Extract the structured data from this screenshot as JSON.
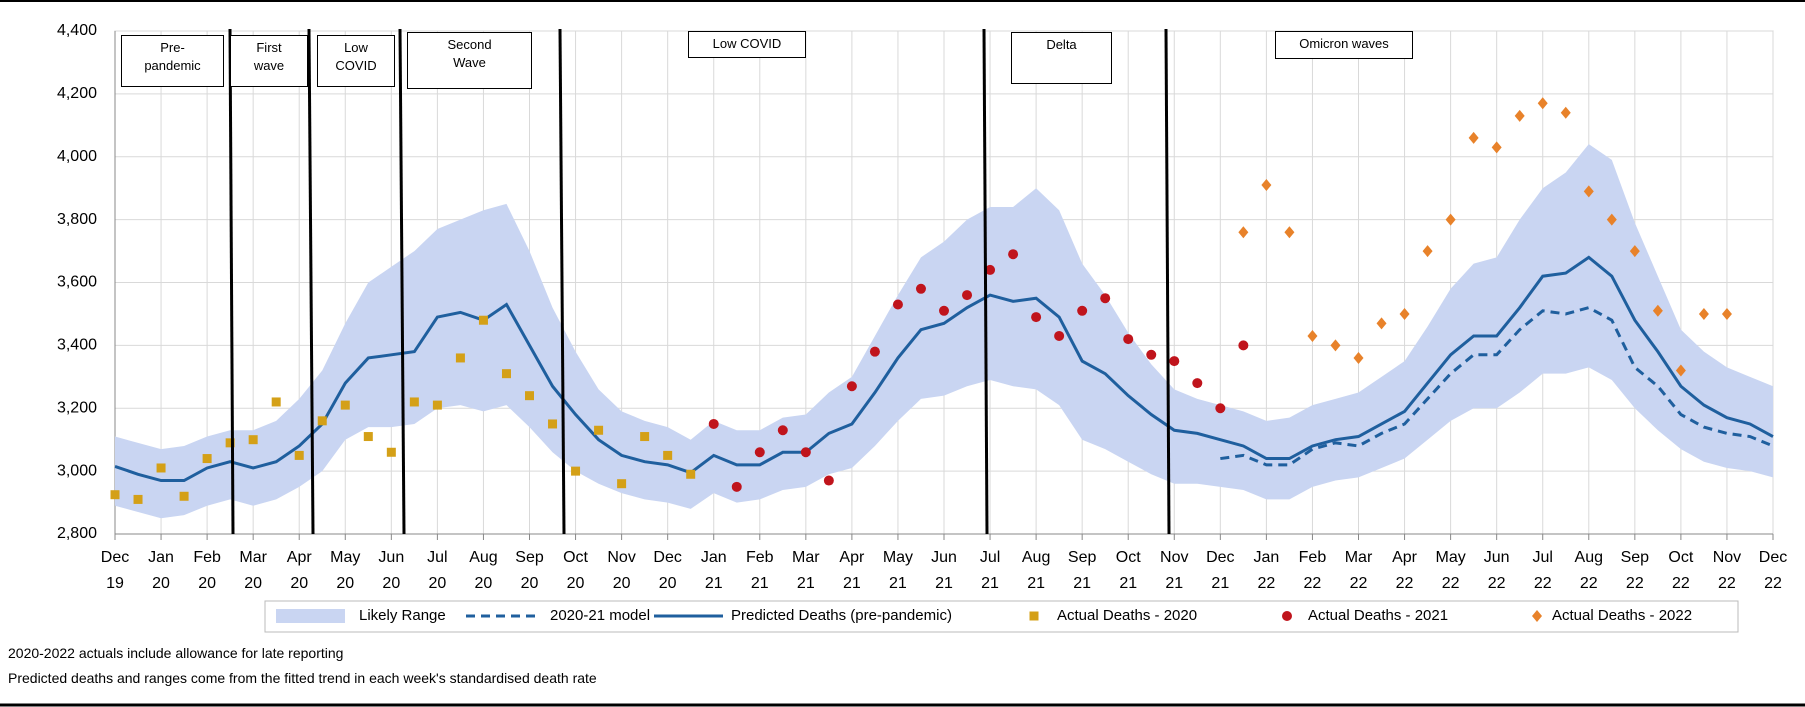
{
  "chart_data": {
    "type": "line",
    "categories": [
      "Dec 19",
      null,
      "Jan 20",
      null,
      "Feb 20",
      null,
      "Mar 20",
      null,
      "Apr 20",
      null,
      "May 20",
      null,
      "Jun 20",
      null,
      "Jul 20",
      null,
      "Aug 20",
      null,
      "Sep 20",
      null,
      "Oct 20",
      null,
      "Nov 20",
      null,
      "Dec 20",
      null,
      "Jan 21",
      null,
      "Feb 21",
      null,
      "Mar 21",
      null,
      "Apr 21",
      null,
      "May 21",
      null,
      "Jun 21",
      null,
      "Jul 21",
      null,
      "Aug 21",
      null,
      "Sep 21",
      null,
      "Oct 21",
      null,
      "Nov 21",
      null,
      "Dec 21",
      null,
      "Jan 22",
      null,
      "Feb 22",
      null,
      "Mar 22",
      null,
      "Apr 22",
      null,
      "May 22",
      null,
      "Jun 22",
      null,
      "Jul 22",
      null,
      "Aug 22",
      null,
      "Sep 22",
      null,
      "Oct 22",
      null,
      "Nov 22",
      null,
      "Dec 22"
    ],
    "ylim": [
      2800,
      4400
    ],
    "yticks": [
      {
        "value": 2800,
        "label": "2,800"
      },
      {
        "value": 3000,
        "label": "3,000"
      },
      {
        "value": 3200,
        "label": "3,200"
      },
      {
        "value": 3400,
        "label": "3,400"
      },
      {
        "value": 3600,
        "label": "3,600"
      },
      {
        "value": 3800,
        "label": "3,800"
      },
      {
        "value": 4000,
        "label": "4,000"
      },
      {
        "value": 4200,
        "label": "4,200"
      },
      {
        "value": 4400,
        "label": "4,400"
      }
    ],
    "grid": true,
    "annotations": [
      "Pre-pandemic",
      "First wave",
      "Low COVID",
      "Second Wave",
      "Low COVID",
      "Delta",
      "Omicron waves"
    ],
    "notes": [
      "2020-2022  actuals include allowance for late reporting",
      "Predicted deaths and ranges come from the fitted trend in each week's standardised death rate"
    ],
    "series": [
      {
        "name": "Likely Range",
        "kind": "band",
        "color": "#c9d5f2",
        "values": [
          3110,
          3090,
          3070,
          3080,
          3110,
          3130,
          3130,
          3160,
          3230,
          3320,
          3470,
          3600,
          3650,
          3700,
          3770,
          3800,
          3830,
          3850,
          3700,
          3520,
          3380,
          3260,
          3190,
          3160,
          3140,
          3100,
          3160,
          3130,
          3130,
          3170,
          3180,
          3250,
          3300,
          3430,
          3560,
          3680,
          3730,
          3800,
          3840,
          3840,
          3900,
          3830,
          3660,
          3560,
          3440,
          3340,
          3260,
          3230,
          3210,
          3190,
          3160,
          3170,
          3210,
          3230,
          3250,
          3300,
          3350,
          3460,
          3580,
          3660,
          3680,
          3800,
          3900,
          3950,
          4040,
          3990,
          3790,
          3620,
          3450,
          3380,
          3330,
          3300,
          3270
        ],
        "lower": [
          2890,
          2870,
          2850,
          2860,
          2890,
          2910,
          2890,
          2910,
          2950,
          3000,
          3100,
          3140,
          3140,
          3150,
          3200,
          3210,
          3190,
          3210,
          3140,
          3060,
          3000,
          2960,
          2930,
          2910,
          2900,
          2880,
          2930,
          2900,
          2910,
          2940,
          2950,
          2990,
          3010,
          3080,
          3160,
          3230,
          3240,
          3270,
          3290,
          3270,
          3260,
          3210,
          3100,
          3070,
          3030,
          2990,
          2960,
          2960,
          2950,
          2940,
          2910,
          2910,
          2950,
          2970,
          2980,
          3010,
          3040,
          3100,
          3160,
          3200,
          3200,
          3250,
          3310,
          3310,
          3330,
          3290,
          3200,
          3130,
          3070,
          3030,
          3010,
          3000,
          2980
        ]
      },
      {
        "name": "2020-21 model",
        "kind": "line",
        "dash": true,
        "color": "#1f5f9e",
        "values": [
          null,
          null,
          null,
          null,
          null,
          null,
          null,
          null,
          null,
          null,
          null,
          null,
          null,
          null,
          null,
          null,
          null,
          null,
          null,
          null,
          null,
          null,
          null,
          null,
          null,
          null,
          null,
          null,
          null,
          null,
          null,
          null,
          null,
          null,
          null,
          null,
          null,
          null,
          null,
          null,
          null,
          null,
          null,
          null,
          null,
          null,
          null,
          null,
          3040,
          3050,
          3020,
          3020,
          3070,
          3090,
          3080,
          3120,
          3150,
          3230,
          3310,
          3370,
          3370,
          3450,
          3510,
          3500,
          3520,
          3480,
          3330,
          3270,
          3180,
          3140,
          3120,
          3110,
          3080
        ]
      },
      {
        "name": "Predicted Deaths (pre-pandemic)",
        "kind": "line",
        "dash": false,
        "color": "#1f5f9e",
        "values": [
          3015,
          2990,
          2970,
          2970,
          3010,
          3030,
          3010,
          3030,
          3080,
          3150,
          3280,
          3360,
          3370,
          3380,
          3490,
          3505,
          3480,
          3530,
          3400,
          3270,
          3180,
          3100,
          3050,
          3030,
          3020,
          2995,
          3050,
          3020,
          3020,
          3060,
          3060,
          3120,
          3150,
          3250,
          3360,
          3450,
          3470,
          3520,
          3560,
          3540,
          3550,
          3490,
          3350,
          3310,
          3240,
          3180,
          3130,
          3120,
          3100,
          3080,
          3040,
          3040,
          3080,
          3100,
          3110,
          3150,
          3190,
          3280,
          3370,
          3430,
          3430,
          3520,
          3620,
          3630,
          3680,
          3620,
          3480,
          3380,
          3270,
          3210,
          3170,
          3150,
          3110
        ]
      },
      {
        "name": "Actual Deaths - 2020",
        "kind": "points",
        "marker": "square",
        "color": "#d4a017",
        "values": [
          2925,
          2910,
          3010,
          2920,
          3040,
          3090,
          3100,
          3220,
          3050,
          3160,
          3210,
          3110,
          3060,
          3220,
          3210,
          3360,
          3480,
          3310,
          3240,
          3150,
          3000,
          3130,
          2960,
          3110,
          3050,
          2990,
          null,
          null,
          null,
          null,
          null,
          null,
          null,
          null,
          null,
          null,
          null,
          null,
          null,
          null,
          null,
          null,
          null,
          null,
          null,
          null,
          null,
          null,
          null,
          null,
          null,
          null,
          null,
          null,
          null,
          null,
          null,
          null,
          null,
          null,
          null,
          null,
          null,
          null,
          null,
          null,
          null,
          null,
          null,
          null,
          null,
          null,
          null
        ]
      },
      {
        "name": "Actual Deaths - 2021",
        "kind": "points",
        "marker": "circle",
        "color": "#c0141c",
        "values": [
          null,
          null,
          null,
          null,
          null,
          null,
          null,
          null,
          null,
          null,
          null,
          null,
          null,
          null,
          null,
          null,
          null,
          null,
          null,
          null,
          null,
          null,
          null,
          null,
          null,
          null,
          3150,
          2950,
          3060,
          3130,
          3060,
          2970,
          3270,
          3380,
          3530,
          3580,
          3510,
          3560,
          3640,
          3690,
          3490,
          3430,
          3510,
          3550,
          3420,
          3370,
          3350,
          3280,
          3200,
          3400,
          null,
          null,
          null,
          null,
          null,
          null,
          null,
          null,
          null,
          null,
          null,
          null,
          null,
          null,
          null,
          null,
          null,
          null,
          null,
          null,
          null,
          null,
          null
        ]
      },
      {
        "name": "Actual Deaths - 2022",
        "kind": "points",
        "marker": "diamond",
        "color": "#e8822a",
        "values": [
          null,
          null,
          null,
          null,
          null,
          null,
          null,
          null,
          null,
          null,
          null,
          null,
          null,
          null,
          null,
          null,
          null,
          null,
          null,
          null,
          null,
          null,
          null,
          null,
          null,
          null,
          null,
          null,
          null,
          null,
          null,
          null,
          null,
          null,
          null,
          null,
          null,
          null,
          null,
          null,
          null,
          null,
          null,
          null,
          null,
          null,
          null,
          null,
          null,
          3760,
          3910,
          3760,
          3430,
          3400,
          3360,
          3470,
          3500,
          3700,
          3800,
          4060,
          4030,
          4130,
          4170,
          4140,
          3890,
          3800,
          3700,
          3510,
          3320,
          3500,
          3500,
          null,
          null
        ]
      }
    ]
  }
}
